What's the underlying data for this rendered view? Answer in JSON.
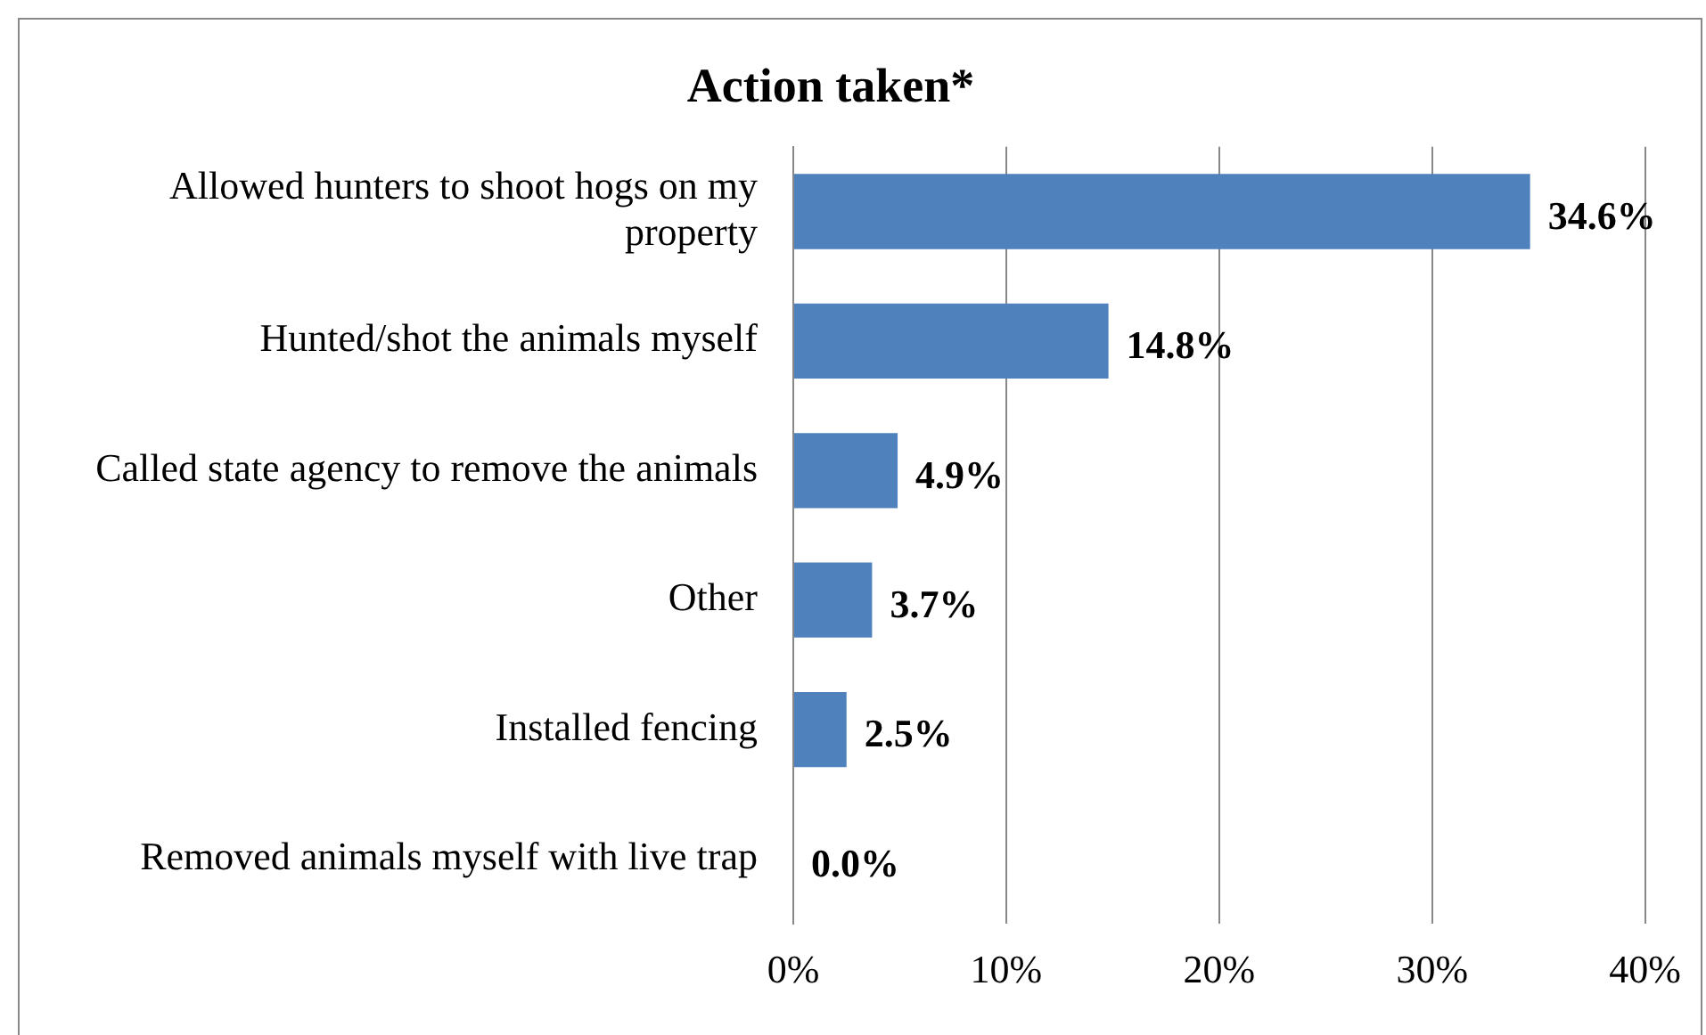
{
  "chart_data": {
    "type": "bar",
    "orientation": "horizontal",
    "title": "Action taken*",
    "categories": [
      "Allowed hunters to shoot hogs on my property",
      "Hunted/shot the animals myself",
      "Called state agency to remove the animals",
      "Other",
      "Installed fencing",
      "Removed animals myself with live trap"
    ],
    "values": [
      34.6,
      14.8,
      4.9,
      3.7,
      2.5,
      0.0
    ],
    "value_labels": [
      "34.6%",
      "14.8%",
      "4.9%",
      "3.7%",
      "2.5%",
      "0.0%"
    ],
    "color": "#4f81bd",
    "xlim": [
      0,
      40
    ],
    "xticks": [
      {
        "value": 0,
        "label": "0%"
      },
      {
        "value": 10,
        "label": "10%"
      },
      {
        "value": 20,
        "label": "20%"
      },
      {
        "value": 30,
        "label": "30%"
      },
      {
        "value": 40,
        "label": "40%"
      }
    ],
    "grid": "x",
    "legend": false
  }
}
